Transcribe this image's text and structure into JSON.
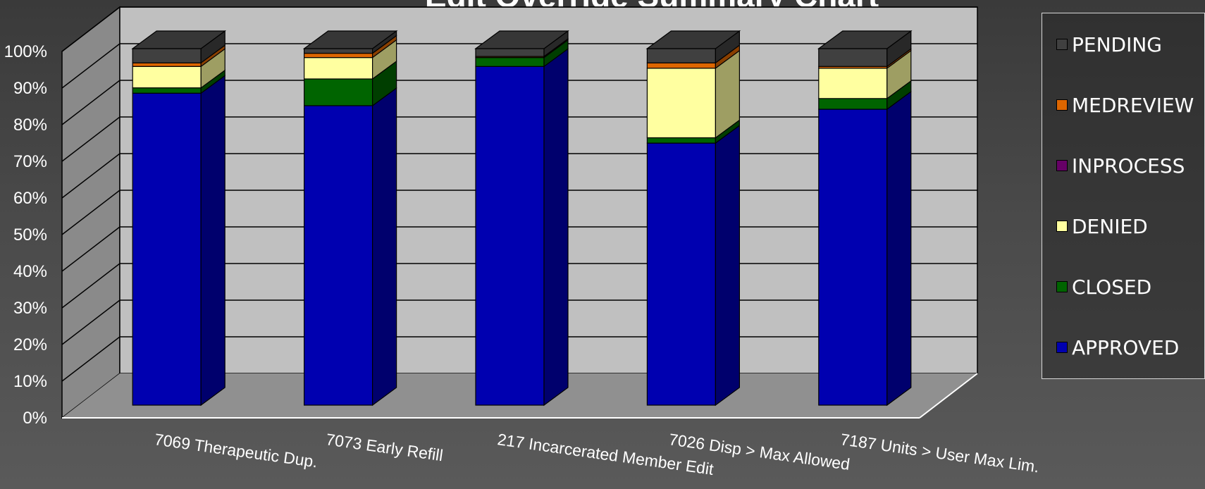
{
  "chart_data": {
    "type": "bar",
    "stacked": true,
    "stacking": "percent",
    "view": "3d",
    "title": "Edit Override Summary Chart",
    "xlabel": "",
    "ylabel": "",
    "ylim": [
      0,
      100
    ],
    "y_ticks": [
      "0%",
      "10%",
      "20%",
      "30%",
      "40%",
      "50%",
      "60%",
      "70%",
      "80%",
      "90%",
      "100%"
    ],
    "grid": true,
    "legend_position": "right",
    "categories": [
      "7069 Therapeutic Dup.",
      "7073  Early Refill",
      "217  Incarcerated Member Edit",
      "7026  Disp > Max Allowed",
      "7187  Units > User Max Lim."
    ],
    "series": [
      {
        "name": "APPROVED",
        "color": "#0000b0",
        "values": [
          87.5,
          84,
          95,
          73.5,
          83
        ]
      },
      {
        "name": "CLOSED",
        "color": "#006400",
        "values": [
          1.5,
          7.5,
          2.5,
          1.5,
          3
        ]
      },
      {
        "name": "DENIED",
        "color": "#ffffa0",
        "values": [
          6,
          6,
          0,
          19.5,
          8.5
        ]
      },
      {
        "name": "INPROCESS",
        "color": "#660066",
        "values": [
          0,
          0,
          0,
          0,
          0
        ]
      },
      {
        "name": "MEDREVIEW",
        "color": "#dd6600",
        "values": [
          1,
          1.2,
          0.3,
          1.5,
          0.5
        ]
      },
      {
        "name": "PENDING",
        "color": "#404040",
        "values": [
          4,
          1.3,
          2.2,
          4,
          5
        ]
      }
    ]
  },
  "legend": {
    "items": [
      {
        "label": "PENDING",
        "color": "#404040"
      },
      {
        "label": "MEDREVIEW",
        "color": "#dd6600"
      },
      {
        "label": "INPROCESS",
        "color": "#660066"
      },
      {
        "label": "DENIED",
        "color": "#ffffa0"
      },
      {
        "label": "CLOSED",
        "color": "#006400"
      },
      {
        "label": "APPROVED",
        "color": "#0000b0"
      }
    ]
  }
}
